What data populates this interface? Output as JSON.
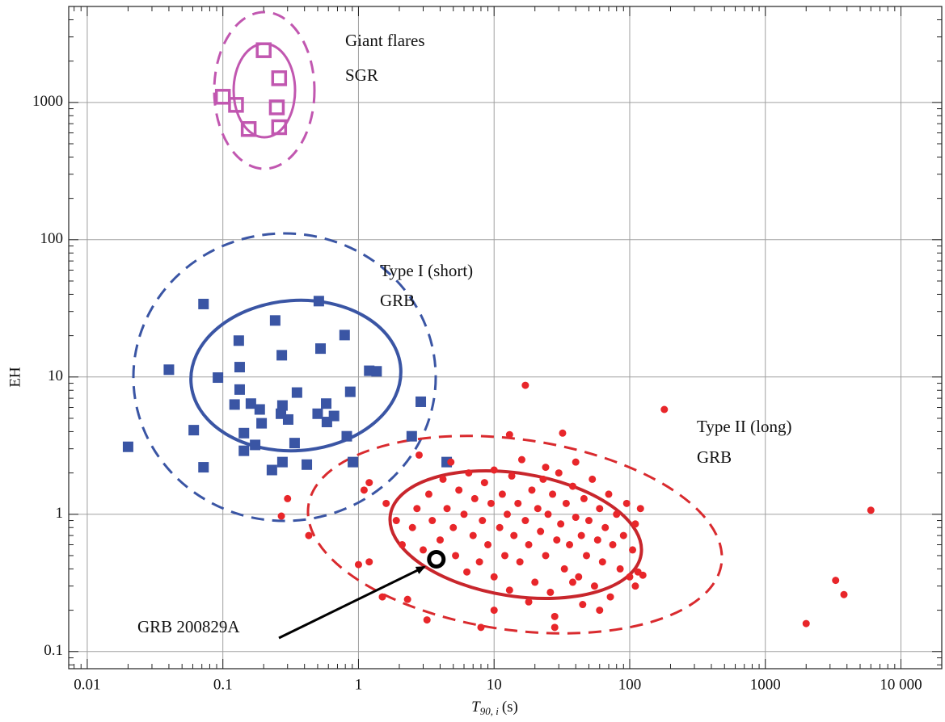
{
  "chart_data": {
    "type": "scatter",
    "xlabel": {
      "symbol": "T",
      "subscript": "90, i",
      "unit": "(s)"
    },
    "ylabel": "EH",
    "xlog": true,
    "ylog": true,
    "grid": true,
    "xlim": [
      0.0073,
      20000
    ],
    "ylim": [
      0.075,
      5000
    ],
    "xticks": [
      0.01,
      0.1,
      1,
      10,
      100,
      1000,
      {
        "value": 10000,
        "label": "10 000"
      }
    ],
    "yticks": [
      0.1,
      1,
      10,
      100,
      1000
    ],
    "annotations": [
      "Giant flares",
      "SGR",
      "Type I (short)",
      "GRB",
      "Type II (long)",
      "GRB",
      "GRB 200829A"
    ],
    "series": [
      {
        "color": "#c157b0",
        "marker": "open-square",
        "x": [
          0.2,
          0.26,
          0.1,
          0.125,
          0.25,
          0.155,
          0.26
        ],
        "values": [
          2400,
          1500,
          1100,
          960,
          920,
          640,
          660
        ]
      },
      {
        "color": "#3a55a4",
        "marker": "square",
        "x": [
          0.02,
          0.04,
          0.061,
          0.072,
          0.072,
          0.092,
          0.122,
          0.131,
          0.133,
          0.133,
          0.143,
          0.143,
          0.161,
          0.173,
          0.187,
          0.193,
          0.243,
          0.23,
          0.272,
          0.275,
          0.268,
          0.303,
          0.275,
          0.352,
          0.338,
          0.416,
          0.51,
          0.525,
          0.5,
          0.578,
          0.585,
          0.66,
          0.79,
          0.82,
          0.87,
          0.91,
          1.2,
          1.36,
          2.47,
          2.88,
          4.47
        ],
        "values": [
          3.1,
          11.3,
          4.1,
          34,
          2.2,
          9.9,
          6.3,
          18.4,
          11.8,
          8.1,
          3.9,
          2.9,
          6.4,
          3.2,
          5.8,
          4.6,
          25.8,
          2.1,
          14.4,
          6.2,
          5.4,
          4.9,
          2.4,
          7.7,
          3.3,
          2.3,
          35.7,
          16.1,
          5.4,
          6.4,
          4.7,
          5.2,
          20.2,
          3.7,
          7.8,
          2.4,
          11.1,
          11.0,
          3.7,
          6.6,
          2.4
        ]
      },
      {
        "color": "#e8262a",
        "marker": "circle",
        "x": [
          0.27,
          0.3,
          0.43,
          1.0,
          1.2,
          1.1,
          1.2,
          1.5,
          2.3,
          3.2,
          8,
          28,
          28,
          32,
          13,
          24,
          40,
          4.8,
          2.8,
          17,
          180,
          6000,
          3300,
          3800,
          2000,
          1.6,
          1.9,
          2.1,
          2.5,
          2.7,
          3.0,
          3.3,
          3.5,
          4.0,
          4.2,
          4.5,
          5.0,
          5.2,
          5.5,
          6.0,
          6.3,
          6.5,
          7.0,
          7.2,
          7.8,
          8.2,
          8.5,
          9.0,
          9.5,
          10,
          10,
          11,
          11.5,
          12,
          12.5,
          13,
          13.5,
          14,
          15,
          15.5,
          16,
          17,
          18,
          19,
          20,
          21,
          22,
          23,
          24,
          25,
          26,
          27,
          29,
          30,
          31,
          33,
          34,
          36,
          38,
          40,
          42,
          44,
          46,
          48,
          50,
          53,
          55,
          58,
          60,
          63,
          66,
          70,
          72,
          75,
          80,
          85,
          90,
          95,
          100,
          105,
          110,
          115,
          120,
          125,
          60,
          45,
          18,
          10,
          38,
          110
        ],
        "values": [
          0.97,
          1.3,
          0.7,
          0.43,
          0.45,
          1.5,
          1.7,
          0.25,
          0.24,
          0.17,
          0.15,
          0.15,
          0.18,
          3.9,
          3.8,
          2.2,
          2.4,
          2.4,
          2.7,
          8.7,
          5.8,
          1.07,
          0.33,
          0.26,
          0.16,
          1.2,
          0.9,
          0.6,
          0.8,
          1.1,
          0.55,
          1.4,
          0.9,
          0.65,
          1.8,
          1.1,
          0.8,
          0.5,
          1.5,
          1.0,
          0.38,
          2.0,
          0.7,
          1.3,
          0.45,
          0.9,
          1.7,
          0.6,
          1.2,
          0.35,
          2.1,
          0.8,
          1.4,
          0.5,
          1.0,
          0.28,
          1.9,
          0.7,
          1.2,
          0.45,
          2.5,
          0.9,
          0.6,
          1.5,
          0.32,
          1.1,
          0.75,
          1.8,
          0.5,
          1.0,
          0.27,
          1.4,
          0.65,
          2.0,
          0.85,
          0.4,
          1.2,
          0.6,
          1.6,
          0.95,
          0.35,
          0.7,
          1.3,
          0.5,
          0.9,
          1.8,
          0.3,
          0.65,
          1.1,
          0.45,
          0.8,
          1.4,
          0.25,
          0.6,
          1.0,
          0.4,
          0.7,
          1.2,
          0.35,
          0.55,
          0.85,
          0.38,
          1.1,
          0.36,
          0.2,
          0.22,
          0.23,
          0.2,
          0.32,
          0.3
        ]
      },
      {
        "color": "#000000",
        "marker": "ring",
        "x": [
          3.75
        ],
        "values": [
          0.47
        ]
      }
    ]
  }
}
